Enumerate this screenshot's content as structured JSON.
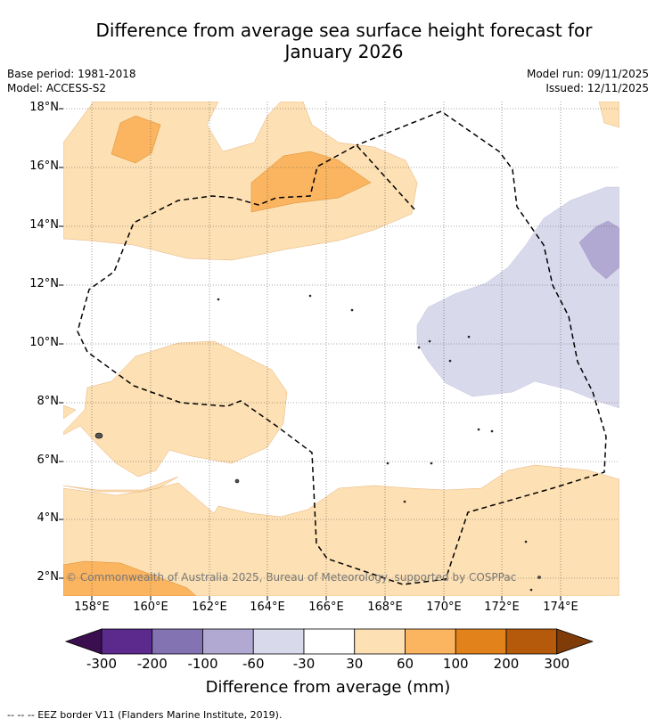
{
  "title_line1": "Difference from average sea surface height forecast for",
  "title_line2": "January 2026",
  "base_period": "Base period: 1981-2018",
  "model": "Model: ACCESS-S2",
  "model_run": "Model run: 09/11/2025",
  "issued": "Issued: 12/11/2025",
  "copyright": "© Commonwealth of Australia 2025, Bureau of Meteorology, supported by COSPPac",
  "lat_labels": [
    "18°N",
    "16°N",
    "14°N",
    "12°N",
    "10°N",
    "8°N",
    "6°N",
    "4°N",
    "2°N"
  ],
  "lon_labels": [
    "158°E",
    "160°E",
    "162°E",
    "164°E",
    "166°E",
    "168°E",
    "170°E",
    "172°E",
    "174°E"
  ],
  "colorbar": {
    "ticks": [
      "-300",
      "-200",
      "-100",
      "-60",
      "-30",
      "30",
      "60",
      "100",
      "200",
      "300"
    ],
    "colors": [
      "#3b0f4f",
      "#5b2a8c",
      "#8473b3",
      "#b1a9d2",
      "#d9d9ec",
      "#ffffff",
      "#fde0b3",
      "#fbb560",
      "#e1821a",
      "#b45a0a",
      "#7f3b08"
    ],
    "title": "Difference from average (mm)"
  },
  "footnote": "-- -- -- EEZ border V11 (Flanders Marine Institute, 2019)."
}
